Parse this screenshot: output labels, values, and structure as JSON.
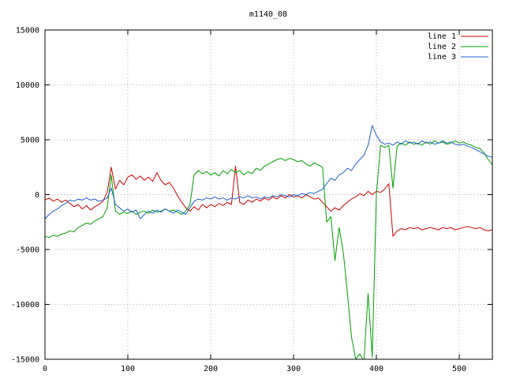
{
  "title": "m1140_08",
  "chart_data": {
    "type": "line",
    "title": "m1140_08",
    "xlabel": "",
    "ylabel": "",
    "xlim": [
      0,
      540
    ],
    "ylim": [
      -15000,
      15000
    ],
    "xticks": [
      0,
      100,
      200,
      300,
      400,
      500
    ],
    "yticks": [
      -15000,
      -10000,
      -5000,
      0,
      5000,
      10000,
      15000
    ],
    "grid": true,
    "grid_style": "dotted",
    "legend_position": "top-right",
    "x_start": 0,
    "x_step": 5,
    "colors": {
      "line1": "#d40000",
      "line2": "#00a000",
      "line3": "#2060d0",
      "grid": "#b0b0b0",
      "border": "#000000"
    },
    "series": [
      {
        "name": "line 1",
        "color": "#d40000",
        "values": [
          -500,
          -300,
          -600,
          -400,
          -700,
          -500,
          -800,
          -1100,
          -900,
          -1300,
          -1000,
          -1400,
          -1100,
          -900,
          -600,
          200,
          2500,
          500,
          1300,
          900,
          1600,
          1800,
          1400,
          1700,
          1300,
          1600,
          1200,
          2000,
          1300,
          900,
          1100,
          600,
          -100,
          -700,
          -1200,
          -1500,
          -1100,
          -1400,
          -900,
          -1200,
          -900,
          -1100,
          -800,
          -1000,
          -700,
          -900,
          2600,
          -700,
          -900,
          -500,
          -700,
          -400,
          -600,
          -300,
          -500,
          -200,
          -400,
          -100,
          -300,
          0,
          -200,
          -100,
          -300,
          0,
          -200,
          -400,
          -300,
          -700,
          -1100,
          -1500,
          -1200,
          -1400,
          -1000,
          -700,
          -400,
          -200,
          100,
          -100,
          300,
          0,
          300,
          200,
          500,
          1000,
          -3800,
          -3300,
          -3100,
          -3200,
          -3000,
          -3100,
          -3000,
          -3200,
          -3100,
          -3000,
          -3100,
          -3200,
          -3000,
          -3100,
          -3000,
          -3200,
          -3100,
          -3000,
          -2900,
          -3000,
          -3100,
          -3000,
          -3200,
          -3300,
          -3200
        ]
      },
      {
        "name": "line 2",
        "color": "#00a000",
        "values": [
          -3800,
          -3900,
          -3700,
          -3800,
          -3600,
          -3500,
          -3300,
          -3400,
          -3000,
          -2800,
          -2600,
          -2700,
          -2400,
          -2200,
          -2000,
          -1200,
          1800,
          -1500,
          -1800,
          -1600,
          -1700,
          -1500,
          -1800,
          -1600,
          -1500,
          -1700,
          -1400,
          -1600,
          -1500,
          -1300,
          -1500,
          -1400,
          -1600,
          -1800,
          -1500,
          -900,
          1800,
          2200,
          1900,
          2100,
          1800,
          2000,
          1700,
          2200,
          1900,
          2300,
          2000,
          2200,
          1800,
          2100,
          1900,
          2400,
          2200,
          2600,
          2800,
          3000,
          3200,
          3300,
          3100,
          3300,
          3200,
          3000,
          3100,
          2800,
          2600,
          2900,
          2700,
          2500,
          -2500,
          -2000,
          -6000,
          -3000,
          -5200,
          -9000,
          -13000,
          -15000,
          -14500,
          -15200,
          -9000,
          -14800,
          0,
          4500,
          4300,
          4500,
          600,
          4400,
          4700,
          4500,
          4800,
          4600,
          4700,
          4500,
          4800,
          4600,
          4900,
          4700,
          4800,
          4600,
          4700,
          4900,
          4700,
          4800,
          4600,
          4500,
          4300,
          4200,
          3800,
          3200,
          2700
        ]
      },
      {
        "name": "line 3",
        "color": "#2060d0",
        "values": [
          -2200,
          -1800,
          -1500,
          -1300,
          -1000,
          -800,
          -500,
          -600,
          -400,
          -500,
          -300,
          -500,
          -400,
          -600,
          -500,
          -300,
          600,
          -900,
          -1200,
          -1500,
          -1300,
          -1600,
          -1400,
          -2200,
          -1800,
          -1500,
          -1700,
          -1400,
          -1600,
          -1300,
          -1500,
          -1700,
          -1400,
          -1600,
          -1800,
          -1200,
          -600,
          -400,
          -500,
          -300,
          -400,
          -200,
          -400,
          -300,
          -500,
          -300,
          -400,
          -200,
          -300,
          -100,
          -300,
          -200,
          -400,
          -200,
          -300,
          -100,
          -200,
          0,
          -100,
          -200,
          0,
          -100,
          100,
          0,
          200,
          100,
          300,
          500,
          1000,
          1500,
          1300,
          1800,
          2000,
          2400,
          2200,
          2800,
          3200,
          3600,
          4500,
          6300,
          5400,
          4800,
          4600,
          4700,
          4500,
          4800,
          4600,
          4900,
          4700,
          4800,
          4600,
          4900,
          4700,
          4800,
          4600,
          4700,
          4900,
          4700,
          4800,
          4600,
          4500,
          4600,
          4400,
          4300,
          4100,
          3900,
          3700,
          3500,
          3400
        ]
      }
    ]
  }
}
